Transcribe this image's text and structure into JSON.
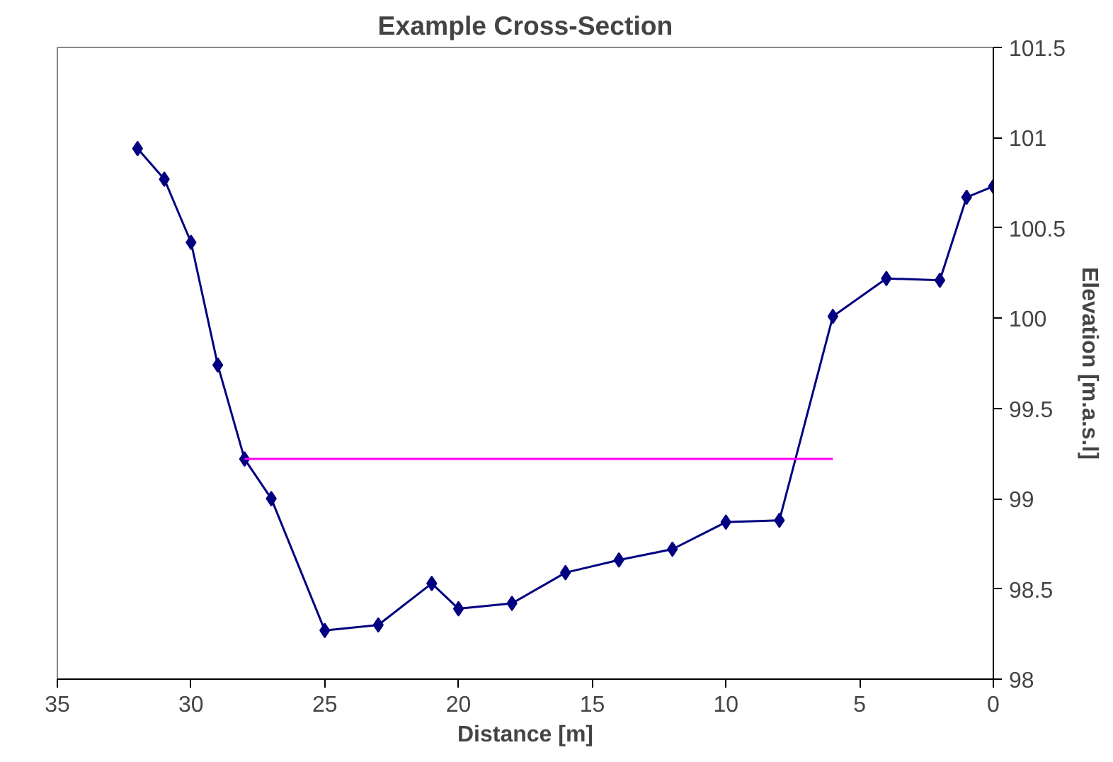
{
  "chart_data": {
    "type": "line",
    "title": "Example Cross-Section",
    "xlabel": "Distance [m]",
    "ylabel": "Elevation [m.a.s.l]",
    "xlim": [
      35,
      0
    ],
    "xticks": [
      35,
      30,
      25,
      20,
      15,
      10,
      5,
      0
    ],
    "ylim": [
      98,
      101.5
    ],
    "yticks": [
      98,
      {
        "value": 98.5,
        "label": "98.5"
      },
      99,
      {
        "value": 99.5,
        "label": "99.5"
      },
      100,
      {
        "value": 100.5,
        "label": "100.5"
      },
      101,
      {
        "value": 101.5,
        "label": "101.5"
      }
    ],
    "series": [
      {
        "color": "#000080",
        "marker": "diamond",
        "x": [
          32,
          31,
          30,
          29,
          28,
          27,
          25,
          23,
          21,
          20,
          18,
          16,
          14,
          12,
          10,
          8,
          6,
          4,
          2,
          1,
          0
        ],
        "values": [
          100.94,
          100.77,
          100.42,
          99.74,
          99.22,
          99.0,
          98.27,
          98.3,
          98.53,
          98.39,
          98.42,
          98.59,
          98.66,
          98.72,
          98.87,
          98.88,
          100.01,
          100.22,
          100.21,
          100.67,
          100.73
        ]
      },
      {
        "color": "#ff00ff",
        "marker": "none",
        "x": [
          28,
          6
        ],
        "values": [
          99.22,
          99.22
        ]
      }
    ],
    "grid": false
  }
}
